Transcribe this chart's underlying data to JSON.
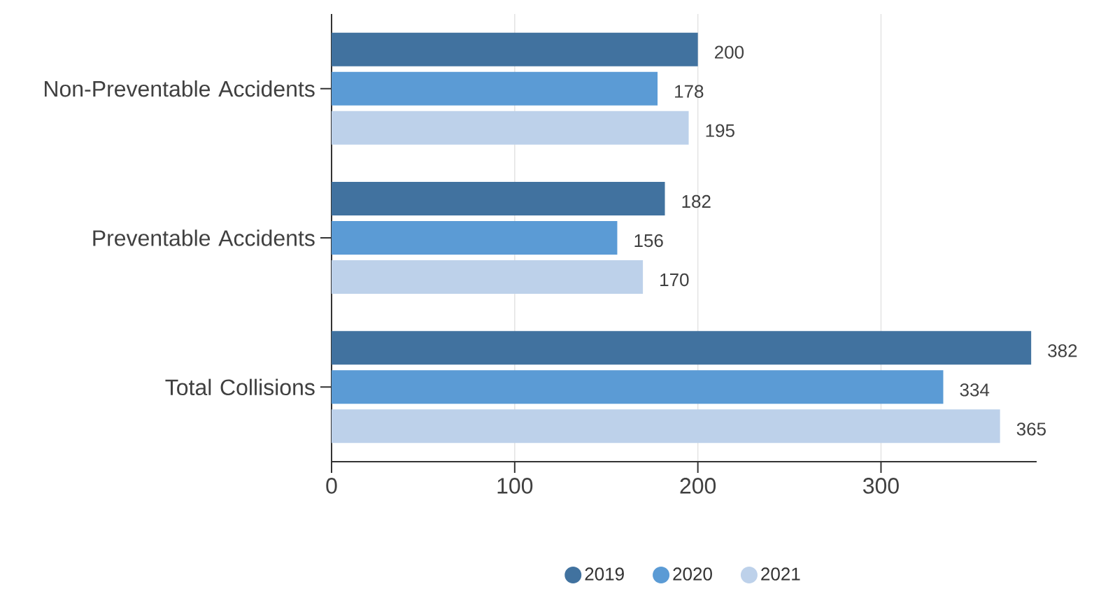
{
  "chart_data": {
    "type": "bar",
    "orientation": "horizontal",
    "categories": [
      "Non-Preventable Accidents",
      "Preventable Accidents",
      "Total Collisions"
    ],
    "series": [
      {
        "name": "2019",
        "color": "#41729f",
        "values": [
          200,
          182,
          382
        ]
      },
      {
        "name": "2020",
        "color": "#5b9bd5",
        "values": [
          178,
          156,
          334
        ]
      },
      {
        "name": "2021",
        "color": "#bdd1ea",
        "values": [
          195,
          170,
          365
        ]
      }
    ],
    "xlim": [
      0,
      385
    ],
    "xticks": [
      0,
      100,
      200,
      300
    ],
    "grid": "x",
    "legend": "bottom",
    "data_labels": true
  }
}
